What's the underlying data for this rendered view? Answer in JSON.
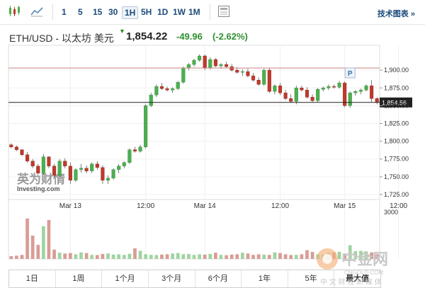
{
  "toolbar": {
    "timeframes": [
      "1",
      "5",
      "15",
      "30",
      "1H",
      "5H",
      "1D",
      "1W",
      "1M"
    ],
    "active": "1H",
    "tech_chart_label": "技术图表 »"
  },
  "header": {
    "instrument": "ETH/USD - 以太坊 美元",
    "price": "1,854.22",
    "change": "-49.96",
    "change_pct": "(-2.62%)"
  },
  "chart_data": {
    "type": "candlestick",
    "y_ticks": [
      "1,900.00",
      "1,875.00",
      "1,850.00",
      "1,825.00",
      "1,800.00",
      "1,775.00",
      "1,750.00",
      "1,725.00"
    ],
    "x_ticks": [
      "Mar 13",
      "12:00",
      "Mar 14",
      "12:00",
      "Mar 15",
      "12:00"
    ],
    "volume_tick": "3000",
    "price_tag": "1,854.56",
    "ref_level": 1903,
    "last_price": 1854.56,
    "ylim": [
      1718,
      1935
    ],
    "marker": "P",
    "colors": {
      "up": "#4caf50",
      "down": "#c0392b",
      "up_vol": "#9fd4a0",
      "down_vol": "#d99c96"
    },
    "candles": [
      [
        1795,
        1797,
        1790,
        1792
      ],
      [
        1792,
        1794,
        1786,
        1788
      ],
      [
        1788,
        1789,
        1779,
        1781
      ],
      [
        1781,
        1785,
        1770,
        1772
      ],
      [
        1772,
        1775,
        1762,
        1765
      ],
      [
        1765,
        1768,
        1752,
        1755
      ],
      [
        1755,
        1782,
        1753,
        1778
      ],
      [
        1778,
        1779,
        1762,
        1765
      ],
      [
        1765,
        1768,
        1750,
        1752
      ],
      [
        1752,
        1775,
        1750,
        1772
      ],
      [
        1772,
        1776,
        1762,
        1765
      ],
      [
        1765,
        1770,
        1740,
        1745
      ],
      [
        1745,
        1762,
        1743,
        1760
      ],
      [
        1760,
        1768,
        1756,
        1762
      ],
      [
        1762,
        1766,
        1755,
        1758
      ],
      [
        1758,
        1770,
        1755,
        1768
      ],
      [
        1768,
        1772,
        1760,
        1763
      ],
      [
        1763,
        1766,
        1740,
        1745
      ],
      [
        1745,
        1752,
        1740,
        1748
      ],
      [
        1748,
        1762,
        1746,
        1760
      ],
      [
        1760,
        1768,
        1755,
        1765
      ],
      [
        1765,
        1772,
        1762,
        1770
      ],
      [
        1770,
        1790,
        1768,
        1788
      ],
      [
        1788,
        1792,
        1784,
        1786
      ],
      [
        1786,
        1795,
        1784,
        1792
      ],
      [
        1792,
        1852,
        1790,
        1850
      ],
      [
        1850,
        1868,
        1848,
        1865
      ],
      [
        1865,
        1880,
        1862,
        1877
      ],
      [
        1877,
        1882,
        1872,
        1874
      ],
      [
        1874,
        1877,
        1870,
        1872
      ],
      [
        1872,
        1876,
        1868,
        1874
      ],
      [
        1874,
        1885,
        1872,
        1883
      ],
      [
        1883,
        1905,
        1881,
        1903
      ],
      [
        1903,
        1910,
        1900,
        1908
      ],
      [
        1908,
        1916,
        1905,
        1914
      ],
      [
        1914,
        1922,
        1912,
        1920
      ],
      [
        1920,
        1922,
        1900,
        1903
      ],
      [
        1903,
        1918,
        1901,
        1915
      ],
      [
        1915,
        1917,
        1904,
        1906
      ],
      [
        1906,
        1910,
        1902,
        1908
      ],
      [
        1908,
        1912,
        1903,
        1905
      ],
      [
        1905,
        1909,
        1898,
        1900
      ],
      [
        1900,
        1904,
        1895,
        1897
      ],
      [
        1897,
        1901,
        1892,
        1898
      ],
      [
        1898,
        1902,
        1890,
        1892
      ],
      [
        1892,
        1896,
        1884,
        1886
      ],
      [
        1886,
        1890,
        1878,
        1880
      ],
      [
        1880,
        1902,
        1878,
        1900
      ],
      [
        1900,
        1903,
        1868,
        1870
      ],
      [
        1870,
        1880,
        1866,
        1878
      ],
      [
        1878,
        1882,
        1865,
        1868
      ],
      [
        1868,
        1872,
        1858,
        1860
      ],
      [
        1860,
        1866,
        1854,
        1856
      ],
      [
        1856,
        1878,
        1852,
        1875
      ],
      [
        1875,
        1878,
        1870,
        1872
      ],
      [
        1872,
        1876,
        1860,
        1862
      ],
      [
        1862,
        1866,
        1855,
        1857
      ],
      [
        1857,
        1875,
        1855,
        1873
      ],
      [
        1873,
        1877,
        1870,
        1875
      ],
      [
        1875,
        1880,
        1872,
        1877
      ],
      [
        1877,
        1880,
        1874,
        1876
      ],
      [
        1876,
        1885,
        1874,
        1882
      ],
      [
        1882,
        1884,
        1848,
        1850
      ],
      [
        1850,
        1870,
        1847,
        1868
      ],
      [
        1868,
        1872,
        1864,
        1870
      ],
      [
        1870,
        1874,
        1866,
        1872
      ],
      [
        1872,
        1880,
        1870,
        1878
      ],
      [
        1878,
        1886,
        1855,
        1860
      ],
      [
        1860,
        1862,
        1852,
        1855
      ]
    ],
    "volumes": [
      180,
      210,
      260,
      2600,
      1500,
      900,
      2100,
      2500,
      600,
      400,
      350,
      380,
      300,
      420,
      380,
      260,
      250,
      320,
      350,
      280,
      300,
      260,
      330,
      680,
      520,
      300,
      260,
      250,
      280,
      300,
      350,
      380,
      300,
      320,
      260,
      300,
      280,
      320,
      400,
      260,
      240,
      280,
      300,
      400,
      350,
      260,
      300,
      280,
      260,
      420,
      380,
      300,
      250,
      260,
      300,
      560,
      450,
      300,
      260,
      380,
      420,
      460,
      350,
      880,
      500,
      520,
      480,
      420,
      300
    ],
    "x_labels_positions_index": [
      11,
      25,
      36,
      50,
      62,
      72
    ]
  },
  "range_tabs": [
    "1日",
    "1周",
    "1个月",
    "3个月",
    "6个月",
    "1年",
    "5年",
    "最大值"
  ],
  "watermark": {
    "logo_text": "英为财情",
    "logo_sub": "Investing.com",
    "site": "中金网",
    "site_url": "CNGOLD.COM",
    "site_sub": "中 文 财 经 新 媒 体"
  }
}
